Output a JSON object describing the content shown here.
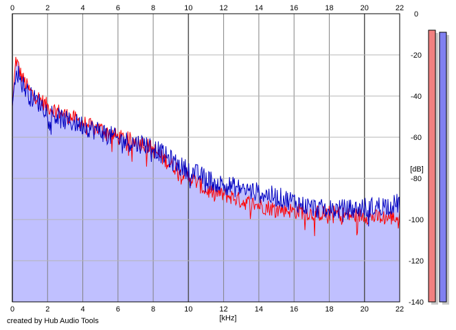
{
  "credit": "created by Hub Audio Tools",
  "colors": {
    "fill": "#c0c0ff",
    "left_channel": "#ff0000",
    "right_channel": "#0000c0",
    "grid_major": "#808080",
    "grid_minor": "#b4b4b4",
    "meter_left": "#f08080",
    "meter_right": "#8080f0"
  },
  "meters": {
    "left_level_db": -8,
    "right_level_db": -9
  },
  "chart_data": {
    "type": "line",
    "xlabel": "[kHz]",
    "ylabel": "[dB]",
    "xlim": [
      0,
      22
    ],
    "ylim": [
      -140,
      0
    ],
    "x_ticks": [
      "0",
      "2",
      "4",
      "6",
      "8",
      "10",
      "12",
      "14",
      "16",
      "18",
      "20",
      "22"
    ],
    "y_ticks": [
      "0",
      "-20",
      "-40",
      "-60",
      "-80",
      "-100",
      "-120",
      "-140"
    ],
    "grid": true,
    "fill_under": true,
    "series": [
      {
        "channel": "left",
        "x": [
          0,
          0.2,
          0.5,
          1,
          1.5,
          2,
          2.5,
          3,
          3.5,
          4,
          4.5,
          5,
          5.5,
          6,
          6.5,
          7,
          7.5,
          8,
          8.5,
          9,
          9.5,
          10,
          10.5,
          11,
          11.5,
          12,
          12.5,
          13,
          13.5,
          14,
          14.5,
          15,
          15.5,
          16,
          16.5,
          17,
          17.5,
          18,
          18.5,
          19,
          19.5,
          20,
          20.5,
          21,
          21.5,
          22
        ],
        "values": [
          -45,
          -22,
          -30,
          -38,
          -41,
          -45,
          -47,
          -49,
          -51,
          -53,
          -55,
          -56,
          -58,
          -60,
          -61,
          -62,
          -63,
          -66,
          -70,
          -73,
          -76,
          -79,
          -82,
          -86,
          -87,
          -88,
          -89,
          -91,
          -92,
          -93,
          -94,
          -95,
          -95,
          -96,
          -96,
          -97,
          -97,
          -97,
          -97,
          -98,
          -98,
          -98,
          -99,
          -99,
          -99,
          -99
        ]
      },
      {
        "channel": "right",
        "x": [
          0,
          0.2,
          0.5,
          1,
          1.5,
          2,
          2.5,
          3,
          3.5,
          4,
          4.5,
          5,
          5.5,
          6,
          6.5,
          7,
          7.5,
          8,
          8.5,
          9,
          9.5,
          10,
          10.5,
          11,
          11.5,
          12,
          12.5,
          13,
          13.5,
          14,
          14.5,
          15,
          15.5,
          16,
          16.5,
          17,
          17.5,
          18,
          18.5,
          19,
          19.5,
          20,
          20.5,
          21,
          21.5,
          22
        ],
        "values": [
          -45,
          -26,
          -33,
          -40,
          -43,
          -47,
          -50,
          -52,
          -53,
          -54,
          -56,
          -57,
          -59,
          -61,
          -62,
          -63,
          -63,
          -65,
          -68,
          -71,
          -74,
          -76,
          -78,
          -80,
          -82,
          -83,
          -84,
          -85,
          -86,
          -87,
          -88,
          -89,
          -90,
          -91,
          -93,
          -94,
          -95,
          -95,
          -95,
          -95,
          -95,
          -94,
          -94,
          -93,
          -93,
          -92
        ]
      }
    ]
  }
}
